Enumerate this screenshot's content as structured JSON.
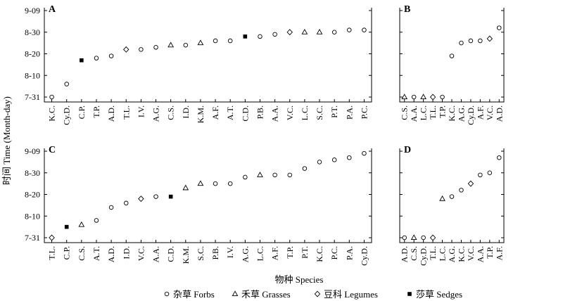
{
  "figure": {
    "ylabel": "时间 Time (Month-day)",
    "xlabel": "物种 Species"
  },
  "legend": [
    {
      "symbol": "circle",
      "label": "杂草 Forbs"
    },
    {
      "symbol": "triangle",
      "label": "禾草 Grasses"
    },
    {
      "symbol": "diamond",
      "label": "豆科 Legumes"
    },
    {
      "symbol": "square",
      "label": "莎草 Sedges"
    }
  ],
  "chart_data": [
    {
      "type": "scatter",
      "panel": "A",
      "yticks": [
        "7-31",
        "8-10",
        "8-20",
        "8-30",
        "9-09"
      ],
      "ylim": [
        "7-31",
        "9-09"
      ],
      "categories": [
        "K.C.",
        "Cy.D.",
        "C.P.",
        "T.P.",
        "A.D.",
        "T.L.",
        "I.V.",
        "A.G.",
        "C.S.",
        "I.D.",
        "K.M.",
        "A.F.",
        "A.T.",
        "C.D.",
        "P.B.",
        "A.A.",
        "V.C.",
        "L.C.",
        "S.C.",
        "P.T.",
        "P.A.",
        "P.C."
      ],
      "points": [
        {
          "species": "K.C.",
          "group": "circle",
          "date": "7-31"
        },
        {
          "species": "Cy.D.",
          "group": "circle",
          "date": "8-06"
        },
        {
          "species": "C.P.",
          "group": "square",
          "date": "8-17"
        },
        {
          "species": "T.P.",
          "group": "circle",
          "date": "8-18"
        },
        {
          "species": "A.D.",
          "group": "circle",
          "date": "8-19"
        },
        {
          "species": "T.L.",
          "group": "diamond",
          "date": "8-22"
        },
        {
          "species": "I.V.",
          "group": "circle",
          "date": "8-22"
        },
        {
          "species": "A.G.",
          "group": "circle",
          "date": "8-23"
        },
        {
          "species": "C.S.",
          "group": "triangle",
          "date": "8-24"
        },
        {
          "species": "I.D.",
          "group": "circle",
          "date": "8-24"
        },
        {
          "species": "K.M.",
          "group": "triangle",
          "date": "8-25"
        },
        {
          "species": "A.F.",
          "group": "circle",
          "date": "8-26"
        },
        {
          "species": "A.T.",
          "group": "circle",
          "date": "8-26"
        },
        {
          "species": "C.D.",
          "group": "square",
          "date": "8-28"
        },
        {
          "species": "P.B.",
          "group": "circle",
          "date": "8-28"
        },
        {
          "species": "A.A.",
          "group": "circle",
          "date": "8-29"
        },
        {
          "species": "V.C.",
          "group": "diamond",
          "date": "8-30"
        },
        {
          "species": "L.C.",
          "group": "triangle",
          "date": "8-30"
        },
        {
          "species": "S.C.",
          "group": "triangle",
          "date": "8-30"
        },
        {
          "species": "P.T.",
          "group": "circle",
          "date": "8-30"
        },
        {
          "species": "P.A.",
          "group": "circle",
          "date": "8-31"
        },
        {
          "species": "P.C.",
          "group": "circle",
          "date": "8-31"
        }
      ]
    },
    {
      "type": "scatter",
      "panel": "B",
      "yticks": [
        "7-31",
        "8-10",
        "8-20",
        "8-30",
        "9-09"
      ],
      "ylim": [
        "7-31",
        "9-09"
      ],
      "categories": [
        "C.S.",
        "A.A.",
        "L.C.",
        "T.L.",
        "T.P.",
        "K.C.",
        "A.G.",
        "Cy.D.",
        "A.F.",
        "V.C.",
        "A.D."
      ],
      "points": [
        {
          "species": "C.S.",
          "group": "triangle",
          "date": "7-31"
        },
        {
          "species": "A.A.",
          "group": "circle",
          "date": "7-31"
        },
        {
          "species": "L.C.",
          "group": "triangle",
          "date": "7-31"
        },
        {
          "species": "T.L.",
          "group": "diamond",
          "date": "7-31"
        },
        {
          "species": "T.P.",
          "group": "circle",
          "date": "7-31"
        },
        {
          "species": "K.C.",
          "group": "circle",
          "date": "8-19"
        },
        {
          "species": "A.G.",
          "group": "circle",
          "date": "8-25"
        },
        {
          "species": "Cy.D.",
          "group": "circle",
          "date": "8-26"
        },
        {
          "species": "A.F.",
          "group": "circle",
          "date": "8-26"
        },
        {
          "species": "V.C.",
          "group": "diamond",
          "date": "8-27"
        },
        {
          "species": "A.D.",
          "group": "circle",
          "date": "9-01"
        }
      ]
    },
    {
      "type": "scatter",
      "panel": "C",
      "yticks": [
        "7-31",
        "8-10",
        "8-20",
        "8-30",
        "9-09"
      ],
      "ylim": [
        "7-31",
        "9-09"
      ],
      "categories": [
        "T.L.",
        "C.P.",
        "C.S.",
        "A.T.",
        "A.D.",
        "I.D.",
        "V.C.",
        "A.A.",
        "C.D.",
        "K.M.",
        "S.C.",
        "P.B.",
        "I.V.",
        "A.G.",
        "L.C.",
        "A.F.",
        "T.P.",
        "P.T.",
        "K.C.",
        "P.C.",
        "P.A.",
        "Cy.D."
      ],
      "points": [
        {
          "species": "T.L.",
          "group": "diamond",
          "date": "7-31"
        },
        {
          "species": "C.P.",
          "group": "square",
          "date": "8-05"
        },
        {
          "species": "C.S.",
          "group": "triangle",
          "date": "8-06"
        },
        {
          "species": "A.T.",
          "group": "circle",
          "date": "8-08"
        },
        {
          "species": "A.D.",
          "group": "circle",
          "date": "8-14"
        },
        {
          "species": "I.D.",
          "group": "circle",
          "date": "8-16"
        },
        {
          "species": "V.C.",
          "group": "diamond",
          "date": "8-18"
        },
        {
          "species": "A.A.",
          "group": "circle",
          "date": "8-19"
        },
        {
          "species": "C.D.",
          "group": "square",
          "date": "8-19"
        },
        {
          "species": "K.M.",
          "group": "triangle",
          "date": "8-23"
        },
        {
          "species": "S.C.",
          "group": "triangle",
          "date": "8-25"
        },
        {
          "species": "P.B.",
          "group": "circle",
          "date": "8-25"
        },
        {
          "species": "I.V.",
          "group": "circle",
          "date": "8-25"
        },
        {
          "species": "A.G.",
          "group": "circle",
          "date": "8-28"
        },
        {
          "species": "L.C.",
          "group": "triangle",
          "date": "8-29"
        },
        {
          "species": "A.F.",
          "group": "circle",
          "date": "8-29"
        },
        {
          "species": "T.P.",
          "group": "circle",
          "date": "8-29"
        },
        {
          "species": "P.T.",
          "group": "circle",
          "date": "9-01"
        },
        {
          "species": "K.C.",
          "group": "circle",
          "date": "9-04"
        },
        {
          "species": "P.C.",
          "group": "circle",
          "date": "9-05"
        },
        {
          "species": "P.A.",
          "group": "circle",
          "date": "9-06"
        },
        {
          "species": "Cy.D.",
          "group": "circle",
          "date": "9-08"
        }
      ]
    },
    {
      "type": "scatter",
      "panel": "D",
      "yticks": [
        "7-31",
        "8-10",
        "8-20",
        "8-30",
        "9-09"
      ],
      "ylim": [
        "7-31",
        "9-09"
      ],
      "categories": [
        "A.D.",
        "C.S.",
        "Cy.D.",
        "T.L.",
        "L.C.",
        "A.G.",
        "K.C.",
        "V.C.",
        "A.A.",
        "T.P.",
        "A.F."
      ],
      "points": [
        {
          "species": "A.D.",
          "group": "circle",
          "date": "7-31"
        },
        {
          "species": "C.S.",
          "group": "triangle",
          "date": "7-31"
        },
        {
          "species": "Cy.D.",
          "group": "circle",
          "date": "7-31"
        },
        {
          "species": "T.L.",
          "group": "diamond",
          "date": "7-31"
        },
        {
          "species": "L.C.",
          "group": "triangle",
          "date": "8-18"
        },
        {
          "species": "A.G.",
          "group": "circle",
          "date": "8-19"
        },
        {
          "species": "K.C.",
          "group": "circle",
          "date": "8-22"
        },
        {
          "species": "V.C.",
          "group": "diamond",
          "date": "8-25"
        },
        {
          "species": "A.A.",
          "group": "circle",
          "date": "8-29"
        },
        {
          "species": "T.P.",
          "group": "circle",
          "date": "8-30"
        },
        {
          "species": "A.F.",
          "group": "circle",
          "date": "9-06"
        }
      ]
    }
  ]
}
